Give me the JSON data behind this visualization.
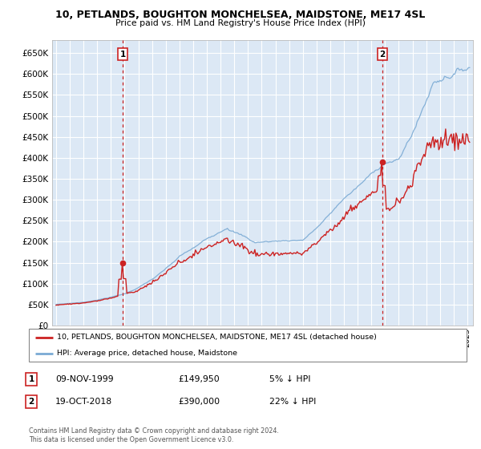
{
  "title": "10, PETLANDS, BOUGHTON MONCHELSEA, MAIDSTONE, ME17 4SL",
  "subtitle": "Price paid vs. HM Land Registry's House Price Index (HPI)",
  "ylim": [
    0,
    680000
  ],
  "yticks": [
    0,
    50000,
    100000,
    150000,
    200000,
    250000,
    300000,
    350000,
    400000,
    450000,
    500000,
    550000,
    600000,
    650000
  ],
  "xlim_start": 1994.7,
  "xlim_end": 2025.4,
  "plot_bg": "#dce8f5",
  "grid_color": "#ffffff",
  "hpi_color": "#7aaad4",
  "price_color": "#cc2222",
  "sale1_date": 1999.87,
  "sale1_price": 149950,
  "sale1_label": "1",
  "sale2_date": 2018.79,
  "sale2_price": 390000,
  "sale2_label": "2",
  "legend_price_label": "10, PETLANDS, BOUGHTON MONCHELSEA, MAIDSTONE, ME17 4SL (detached house)",
  "legend_hpi_label": "HPI: Average price, detached house, Maidstone",
  "annotation1_date": "09-NOV-1999",
  "annotation1_price": "£149,950",
  "annotation1_pct": "5% ↓ HPI",
  "annotation2_date": "19-OCT-2018",
  "annotation2_price": "£390,000",
  "annotation2_pct": "22% ↓ HPI",
  "footer": "Contains HM Land Registry data © Crown copyright and database right 2024.\nThis data is licensed under the Open Government Licence v3.0."
}
